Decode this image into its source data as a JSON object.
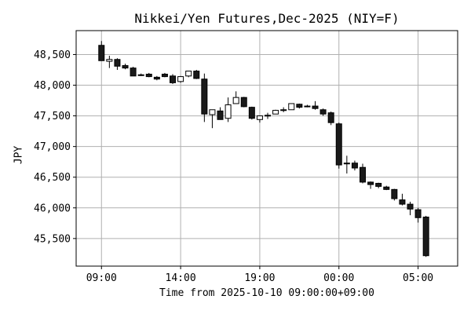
{
  "chart_data": {
    "type": "candlestick",
    "title": "Nikkei/Yen Futures,Dec-2025 (NIY=F)",
    "xlabel": "Time from 2025-10-10 09:00:00+09:00",
    "ylabel": "JPY",
    "x_tick_labels": [
      "09:00",
      "14:00",
      "19:00",
      "00:00",
      "05:00"
    ],
    "x_tick_hours": [
      0,
      5,
      10,
      15,
      20
    ],
    "y_ticks": [
      45500,
      46000,
      46500,
      47000,
      47500,
      48000,
      48500
    ],
    "y_tick_labels": [
      "45,500",
      "46,000",
      "46,500",
      "47,000",
      "47,500",
      "48,000",
      "48,500"
    ],
    "xlim_hours": [
      -1.6,
      22.5
    ],
    "ylim": [
      45050,
      48890
    ],
    "grid": true,
    "up_color": "#ffffff",
    "down_color": "#1a1a1a",
    "candles": [
      {
        "t": 0.0,
        "o": 48650,
        "h": 48720,
        "l": 48400,
        "c": 48400
      },
      {
        "t": 0.5,
        "o": 48390,
        "h": 48480,
        "l": 48280,
        "c": 48420
      },
      {
        "t": 1.0,
        "o": 48420,
        "h": 48440,
        "l": 48250,
        "c": 48310
      },
      {
        "t": 1.5,
        "o": 48320,
        "h": 48350,
        "l": 48260,
        "c": 48280
      },
      {
        "t": 2.0,
        "o": 48280,
        "h": 48300,
        "l": 48150,
        "c": 48150
      },
      {
        "t": 2.5,
        "o": 48170,
        "h": 48190,
        "l": 48150,
        "c": 48160
      },
      {
        "t": 3.0,
        "o": 48180,
        "h": 48200,
        "l": 48130,
        "c": 48140
      },
      {
        "t": 3.5,
        "o": 48130,
        "h": 48150,
        "l": 48080,
        "c": 48100
      },
      {
        "t": 4.0,
        "o": 48180,
        "h": 48200,
        "l": 48130,
        "c": 48140
      },
      {
        "t": 4.5,
        "o": 48150,
        "h": 48180,
        "l": 48020,
        "c": 48040
      },
      {
        "t": 5.0,
        "o": 48060,
        "h": 48150,
        "l": 48040,
        "c": 48140
      },
      {
        "t": 5.5,
        "o": 48150,
        "h": 48230,
        "l": 48130,
        "c": 48230
      },
      {
        "t": 6.0,
        "o": 48230,
        "h": 48250,
        "l": 48100,
        "c": 48110
      },
      {
        "t": 6.5,
        "o": 48100,
        "h": 48190,
        "l": 47400,
        "c": 47530
      },
      {
        "t": 7.0,
        "o": 47520,
        "h": 47600,
        "l": 47300,
        "c": 47600
      },
      {
        "t": 7.5,
        "o": 47580,
        "h": 47640,
        "l": 47440,
        "c": 47440
      },
      {
        "t": 8.0,
        "o": 47460,
        "h": 47800,
        "l": 47400,
        "c": 47680
      },
      {
        "t": 8.5,
        "o": 47700,
        "h": 47900,
        "l": 47700,
        "c": 47800
      },
      {
        "t": 9.0,
        "o": 47800,
        "h": 47810,
        "l": 47640,
        "c": 47650
      },
      {
        "t": 9.5,
        "o": 47640,
        "h": 47650,
        "l": 47440,
        "c": 47460
      },
      {
        "t": 10.0,
        "o": 47440,
        "h": 47500,
        "l": 47390,
        "c": 47500
      },
      {
        "t": 10.5,
        "o": 47510,
        "h": 47550,
        "l": 47450,
        "c": 47510
      },
      {
        "t": 11.0,
        "o": 47530,
        "h": 47600,
        "l": 47530,
        "c": 47590
      },
      {
        "t": 11.5,
        "o": 47590,
        "h": 47640,
        "l": 47560,
        "c": 47600
      },
      {
        "t": 12.0,
        "o": 47600,
        "h": 47700,
        "l": 47600,
        "c": 47700
      },
      {
        "t": 12.5,
        "o": 47690,
        "h": 47700,
        "l": 47620,
        "c": 47640
      },
      {
        "t": 13.0,
        "o": 47660,
        "h": 47680,
        "l": 47640,
        "c": 47650
      },
      {
        "t": 13.5,
        "o": 47660,
        "h": 47740,
        "l": 47600,
        "c": 47620
      },
      {
        "t": 14.0,
        "o": 47600,
        "h": 47620,
        "l": 47500,
        "c": 47530
      },
      {
        "t": 14.5,
        "o": 47550,
        "h": 47570,
        "l": 47350,
        "c": 47390
      },
      {
        "t": 15.0,
        "o": 47370,
        "h": 47390,
        "l": 46640,
        "c": 46700
      },
      {
        "t": 15.5,
        "o": 46720,
        "h": 46850,
        "l": 46560,
        "c": 46730
      },
      {
        "t": 16.0,
        "o": 46730,
        "h": 46770,
        "l": 46610,
        "c": 46650
      },
      {
        "t": 16.5,
        "o": 46660,
        "h": 46720,
        "l": 46400,
        "c": 46420
      },
      {
        "t": 17.0,
        "o": 46420,
        "h": 46430,
        "l": 46310,
        "c": 46380
      },
      {
        "t": 17.5,
        "o": 46400,
        "h": 46410,
        "l": 46320,
        "c": 46350
      },
      {
        "t": 18.0,
        "o": 46340,
        "h": 46360,
        "l": 46290,
        "c": 46300
      },
      {
        "t": 18.5,
        "o": 46300,
        "h": 46310,
        "l": 46120,
        "c": 46150
      },
      {
        "t": 19.0,
        "o": 46130,
        "h": 46230,
        "l": 46040,
        "c": 46060
      },
      {
        "t": 19.5,
        "o": 46060,
        "h": 46100,
        "l": 45880,
        "c": 45980
      },
      {
        "t": 20.0,
        "o": 45970,
        "h": 46000,
        "l": 45760,
        "c": 45840
      },
      {
        "t": 20.5,
        "o": 45850,
        "h": 45870,
        "l": 45200,
        "c": 45220
      }
    ]
  }
}
